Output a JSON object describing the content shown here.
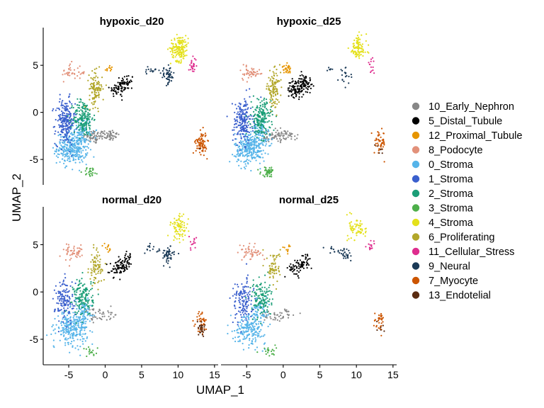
{
  "chart_data": {
    "type": "scatter",
    "xlabel": "UMAP_1",
    "ylabel": "UMAP_2",
    "xlim": [
      -8.5,
      15.5
    ],
    "ylim": [
      -7.7,
      9.0
    ],
    "x_ticks": [
      {
        "v": -5,
        "label": "-5"
      },
      {
        "v": 0,
        "label": "0"
      },
      {
        "v": 5,
        "label": "5"
      },
      {
        "v": 10,
        "label": "10"
      },
      {
        "v": 15,
        "label": "15"
      }
    ],
    "y_ticks": [
      {
        "v": -5,
        "label": "-5"
      },
      {
        "v": 0,
        "label": "0"
      },
      {
        "v": 5,
        "label": "5"
      }
    ],
    "legend_position": "right",
    "panels": [
      {
        "title": "hypoxic_d20"
      },
      {
        "title": "hypoxic_d25"
      },
      {
        "title": "normal_d20"
      },
      {
        "title": "normal_d25"
      }
    ],
    "clusters": [
      {
        "name": "10_Early_Nephron",
        "color": "#878787",
        "centers": [
          [
            -1.5,
            -2.6,
            1.0,
            0.5,
            60
          ],
          [
            0.5,
            -2.4,
            1.0,
            0.4,
            50
          ]
        ],
        "density": [
          1.0,
          0.8,
          0.4,
          0.4
        ]
      },
      {
        "name": "5_Distal_Tubule",
        "color": "#000000",
        "centers": [
          [
            1.8,
            2.5,
            0.8,
            0.6,
            60
          ],
          [
            3.0,
            3.2,
            0.6,
            0.6,
            40
          ]
        ],
        "density": [
          0.9,
          1.6,
          1.0,
          0.8
        ]
      },
      {
        "name": "12_Proximal_Tubule",
        "color": "#E69500",
        "centers": [
          [
            0.5,
            4.6,
            0.4,
            0.3,
            14
          ]
        ],
        "density": [
          0.8,
          2.4,
          0.8,
          0.8
        ]
      },
      {
        "name": "8_Podocyte",
        "color": "#E2917A",
        "centers": [
          [
            -5.0,
            4.3,
            0.6,
            0.6,
            25
          ],
          [
            -3.8,
            4.2,
            0.7,
            0.4,
            22
          ]
        ],
        "density": [
          0.8,
          1.0,
          1.0,
          1.0
        ]
      },
      {
        "name": "0_Stroma",
        "color": "#56B4E9",
        "centers": [
          [
            -4.5,
            -3.8,
            1.4,
            1.1,
            330
          ],
          [
            -3.0,
            -1.8,
            0.8,
            0.8,
            80
          ]
        ],
        "density": [
          1.0,
          0.9,
          0.8,
          0.6
        ]
      },
      {
        "name": "1_Stroma",
        "color": "#3A5FCD",
        "centers": [
          [
            -5.5,
            -1.0,
            0.9,
            1.6,
            220
          ]
        ],
        "density": [
          1.0,
          0.9,
          0.6,
          0.6
        ]
      },
      {
        "name": "2_Stroma",
        "color": "#1B9E77",
        "centers": [
          [
            -3.0,
            -0.6,
            0.9,
            1.3,
            180
          ]
        ],
        "density": [
          1.0,
          1.0,
          0.8,
          0.7
        ]
      },
      {
        "name": "3_Stroma",
        "color": "#4DAF4A",
        "centers": [
          [
            -2.0,
            -6.3,
            0.7,
            0.35,
            40
          ]
        ],
        "density": [
          0.6,
          1.2,
          0.4,
          0.5
        ]
      },
      {
        "name": "4_Stroma",
        "color": "#E4E11C",
        "centers": [
          [
            10.2,
            6.8,
            0.8,
            0.9,
            160
          ]
        ],
        "density": [
          1.0,
          0.6,
          0.5,
          0.4
        ]
      },
      {
        "name": "6_Proliferating",
        "color": "#B2A72A",
        "centers": [
          [
            -1.3,
            2.5,
            0.6,
            1.2,
            110
          ]
        ],
        "density": [
          1.0,
          1.0,
          0.7,
          0.6
        ]
      },
      {
        "name": "11_Cellular_Stress",
        "color": "#DE2D8E",
        "centers": [
          [
            12.0,
            5.0,
            0.35,
            0.55,
            25
          ]
        ],
        "density": [
          1.0,
          0.5,
          0.5,
          0.5
        ]
      },
      {
        "name": "9_Neural",
        "color": "#1B3A57",
        "centers": [
          [
            8.6,
            3.9,
            0.6,
            0.6,
            50
          ],
          [
            6.5,
            4.5,
            0.8,
            0.3,
            14
          ]
        ],
        "density": [
          1.0,
          0.4,
          1.0,
          0.6
        ]
      },
      {
        "name": "7_Myocyte",
        "color": "#CC5500",
        "centers": [
          [
            13.2,
            -3.2,
            0.5,
            0.8,
            80
          ]
        ],
        "density": [
          1.0,
          0.6,
          0.5,
          0.4
        ]
      },
      {
        "name": "13_Endotelial",
        "color": "#5B2C12",
        "centers": [
          [
            13.2,
            -3.8,
            0.4,
            0.6,
            20
          ]
        ],
        "density": [
          0.1,
          0.3,
          1.4,
          0.3
        ]
      }
    ]
  }
}
